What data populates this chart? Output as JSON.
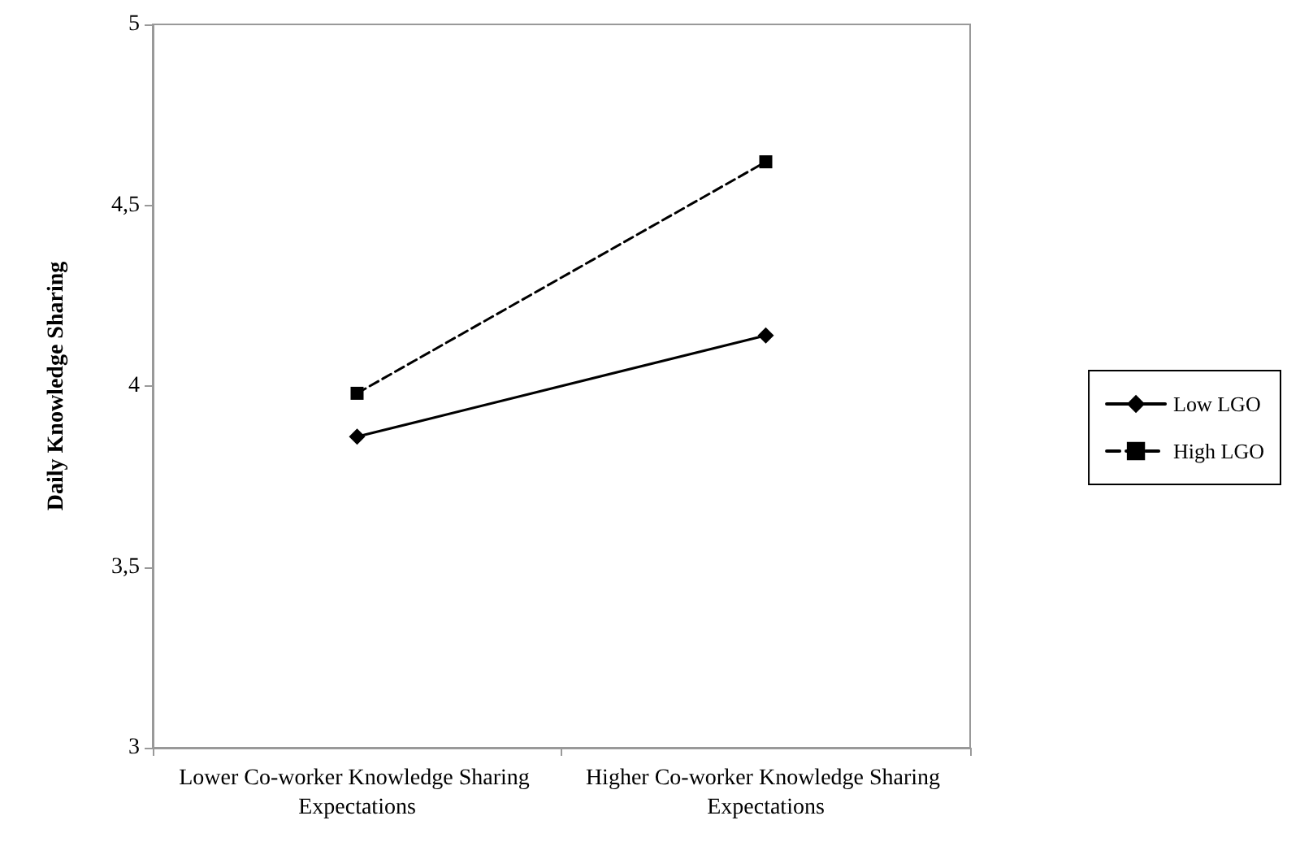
{
  "chart_data": {
    "type": "line",
    "ylabel": "Daily Knowledge Sharing",
    "categories": [
      "Lower Co-worker Knowledge Sharing Expectations",
      "Higher Co-worker Knowledge Sharing Expectations"
    ],
    "series": [
      {
        "name": "Low LGO",
        "color": "#000000",
        "values": [
          3.86,
          4.14
        ],
        "marker": "diamond",
        "line_style": "solid"
      },
      {
        "name": "High LGO",
        "color": "#000000",
        "values": [
          3.98,
          4.62
        ],
        "marker": "square",
        "line_style": "dashed"
      }
    ],
    "ylim": [
      3,
      5
    ],
    "yticks": [
      3,
      {
        "value": 3.5,
        "label": "3,5"
      },
      4,
      {
        "value": 4.5,
        "label": "4,5"
      },
      5
    ],
    "grid": false,
    "legend": "right"
  }
}
